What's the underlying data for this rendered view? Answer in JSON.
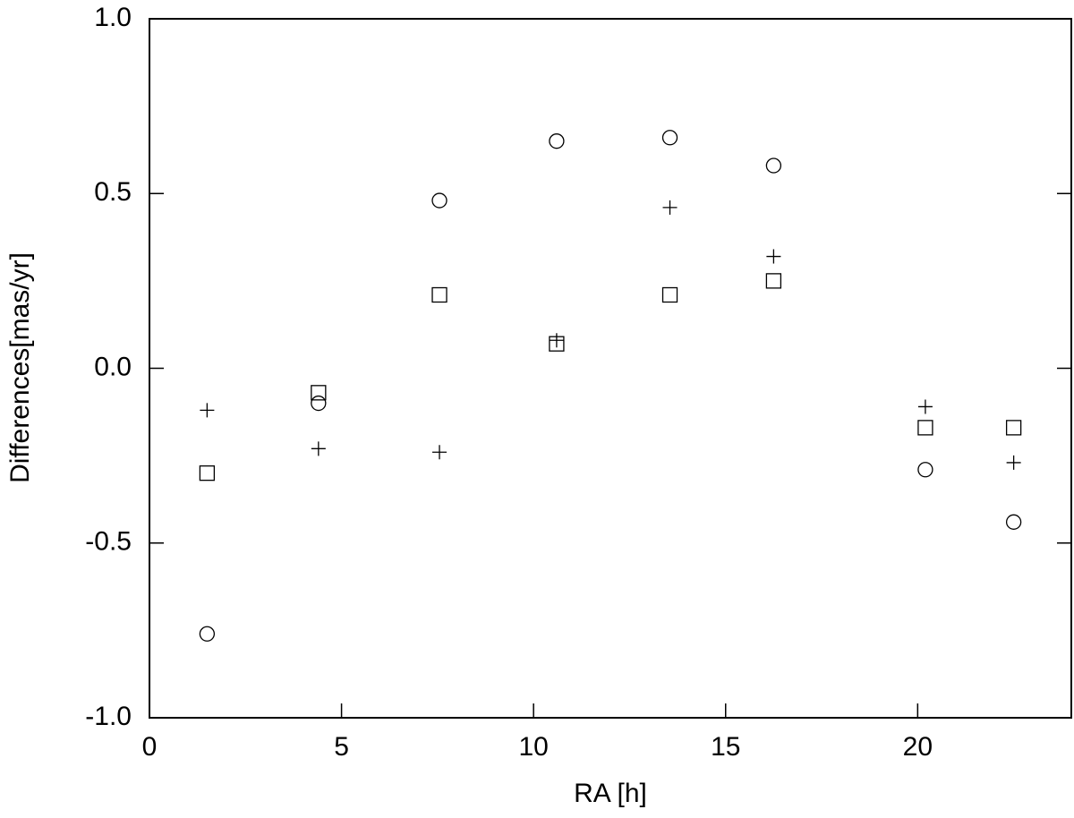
{
  "chart_data": {
    "type": "scatter",
    "x_label": "RA [h]",
    "y_label": "Differences[mas/yr]",
    "x": [
      1.5,
      4.4,
      7.55,
      10.6,
      13.55,
      16.25,
      20.2,
      22.5
    ],
    "series": [
      {
        "marker": "circle",
        "color": "#000000",
        "values": [
          -0.76,
          -0.1,
          0.48,
          0.65,
          0.66,
          0.58,
          -0.29,
          -0.44
        ]
      },
      {
        "marker": "square",
        "color": "#000000",
        "values": [
          -0.3,
          -0.07,
          0.21,
          0.07,
          0.21,
          0.25,
          -0.17,
          -0.17
        ]
      },
      {
        "marker": "plus",
        "color": "#000000",
        "values": [
          -0.12,
          -0.23,
          -0.24,
          0.08,
          0.46,
          0.32,
          -0.11,
          -0.27
        ]
      }
    ],
    "xlim": [
      0,
      24
    ],
    "xticks": [
      0,
      5,
      10,
      15,
      20
    ],
    "ylim": [
      -1,
      1
    ],
    "yticks": [
      {
        "value": -1,
        "label": "-1.0"
      },
      -0.5,
      {
        "value": 0,
        "label": "0.0"
      },
      0.5,
      {
        "value": 1,
        "label": "1.0"
      }
    ]
  }
}
